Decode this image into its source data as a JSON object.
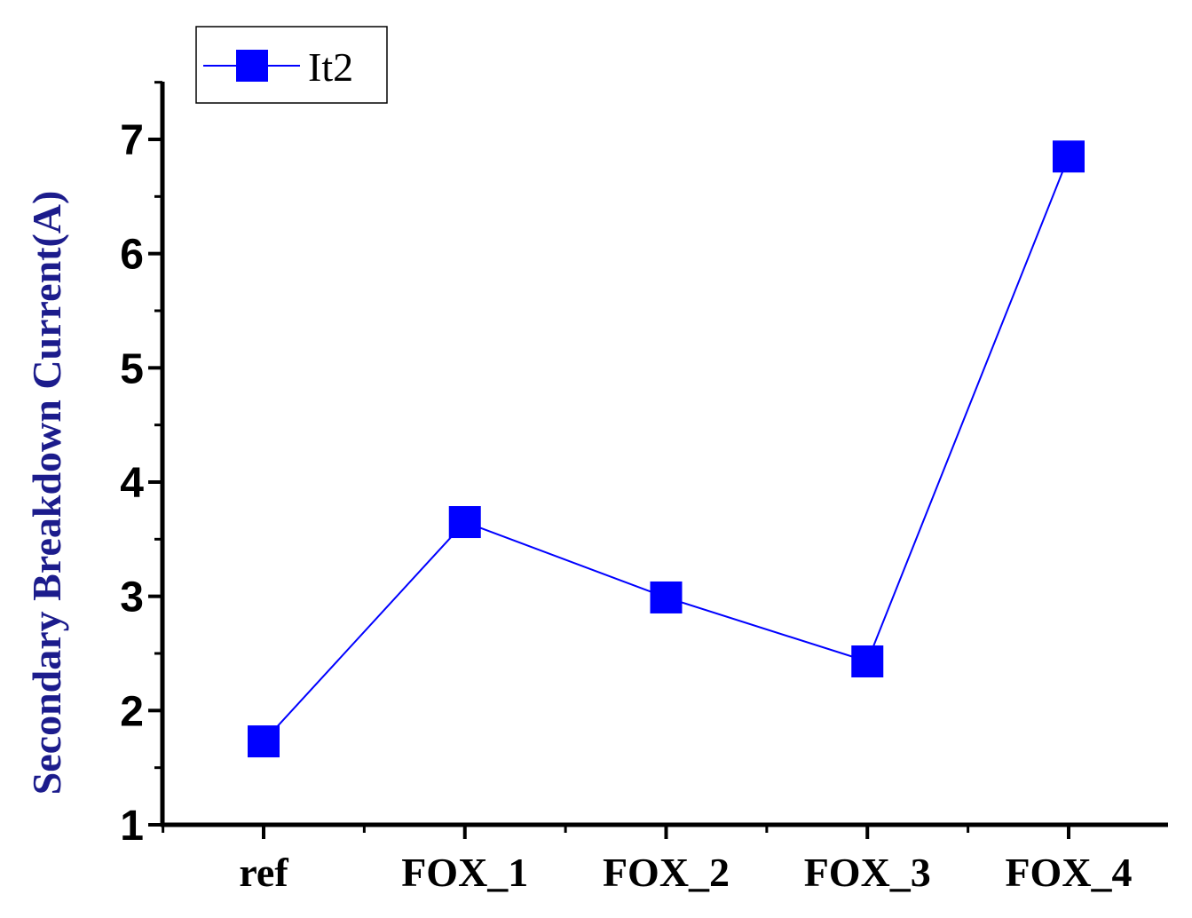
{
  "chart_data": {
    "type": "line",
    "categories": [
      "ref",
      "FOX_1",
      "FOX_2",
      "FOX_3",
      "FOX_4"
    ],
    "series": [
      {
        "name": "It2",
        "values": [
          1.73,
          3.65,
          2.99,
          2.43,
          6.85
        ]
      }
    ],
    "xlabel": "",
    "ylabel": "Secondary Breakdown Current(A)",
    "ylim": [
      1,
      7.5
    ],
    "yticks": [
      1,
      2,
      3,
      4,
      5,
      6,
      7
    ],
    "grid": false,
    "legend": "top-left",
    "colors": {
      "series": "#0000ff",
      "ylabel": "#1c1c8c",
      "axis": "#000000"
    }
  }
}
